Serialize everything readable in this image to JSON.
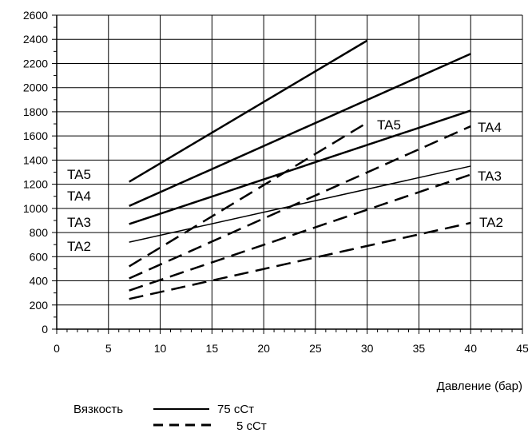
{
  "chart_data": {
    "type": "line",
    "xlabel": "Давление (бар)",
    "ylabel": "",
    "xlim": [
      0,
      45
    ],
    "ylim": [
      0,
      2600
    ],
    "x_ticks": [
      0,
      5,
      10,
      15,
      20,
      25,
      30,
      35,
      40,
      45
    ],
    "y_ticks": [
      0,
      200,
      400,
      600,
      800,
      1000,
      1200,
      1400,
      1600,
      1800,
      2000,
      2200,
      2400,
      2600
    ],
    "grid": true,
    "series": [
      {
        "name": "TA5",
        "viscosity": "75 cCт",
        "points": [
          [
            7,
            1220
          ],
          [
            30,
            2390
          ]
        ]
      },
      {
        "name": "TA4",
        "viscosity": "75 cCт",
        "points": [
          [
            7,
            1020
          ],
          [
            40,
            2280
          ]
        ]
      },
      {
        "name": "TA3",
        "viscosity": "75 cCт",
        "points": [
          [
            7,
            870
          ],
          [
            40,
            1810
          ]
        ]
      },
      {
        "name": "TA2",
        "viscosity": "75 cCт",
        "points": [
          [
            7,
            720
          ],
          [
            40,
            1350
          ]
        ]
      },
      {
        "name": "TA5",
        "viscosity": "5 cCт",
        "points": [
          [
            7,
            520
          ],
          [
            30,
            1710
          ]
        ]
      },
      {
        "name": "TA4",
        "viscosity": "5 cCт",
        "points": [
          [
            7,
            420
          ],
          [
            40,
            1680
          ]
        ]
      },
      {
        "name": "TA3",
        "viscosity": "5 cCт",
        "points": [
          [
            7,
            320
          ],
          [
            40,
            1280
          ]
        ]
      },
      {
        "name": "TA2",
        "viscosity": "5 cCт",
        "points": [
          [
            7,
            250
          ],
          [
            40,
            880
          ]
        ]
      }
    ],
    "left_labels": [
      "TA5",
      "TA4",
      "TA3",
      "TA2"
    ],
    "right_labels": [
      "TA5",
      "TA4",
      "TA3",
      "TA2"
    ],
    "legend": {
      "title": "Вязкость",
      "entries": [
        {
          "label": "75 cCт",
          "style": "solid"
        },
        {
          "label": "5 cCт",
          "style": "dashed"
        }
      ]
    }
  }
}
